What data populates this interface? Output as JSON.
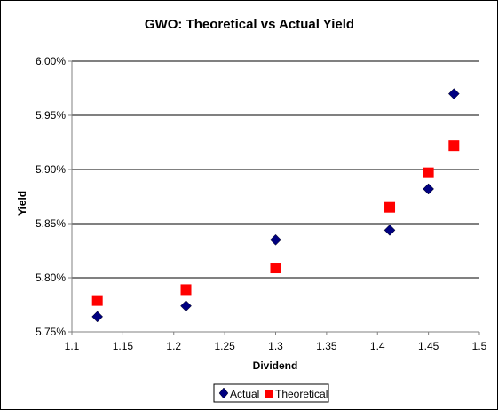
{
  "chart_data": {
    "type": "scatter",
    "title": "GWO: Theoretical vs Actual Yield",
    "xlabel": "Dividend",
    "ylabel": "Yield",
    "xlim": [
      1.1,
      1.5
    ],
    "ylim": [
      0.0575,
      0.06
    ],
    "x_ticks": [
      1.1,
      1.15,
      1.2,
      1.25,
      1.3,
      1.35,
      1.4,
      1.45,
      1.5
    ],
    "x_tick_labels": [
      "1.1",
      "1.15",
      "1.2",
      "1.25",
      "1.3",
      "1.35",
      "1.4",
      "1.45",
      "1.5"
    ],
    "y_ticks": [
      0.0575,
      0.058,
      0.0585,
      0.059,
      0.0595,
      0.06
    ],
    "y_tick_labels": [
      "5.75%",
      "5.80%",
      "5.85%",
      "5.90%",
      "5.95%",
      "6.00%"
    ],
    "grid": "horizontal",
    "legend_position": "bottom",
    "series": [
      {
        "name": "Actual",
        "marker": "diamond",
        "color": "#000080",
        "x": [
          1.125,
          1.212,
          1.3,
          1.412,
          1.45,
          1.475
        ],
        "y": [
          0.05764,
          0.05774,
          0.05835,
          0.05844,
          0.05882,
          0.0597
        ]
      },
      {
        "name": "Theoretical",
        "marker": "square",
        "color": "#ff0000",
        "x": [
          1.125,
          1.212,
          1.3,
          1.412,
          1.45,
          1.475
        ],
        "y": [
          0.05779,
          0.05789,
          0.05809,
          0.05865,
          0.05897,
          0.05922
        ]
      }
    ]
  }
}
